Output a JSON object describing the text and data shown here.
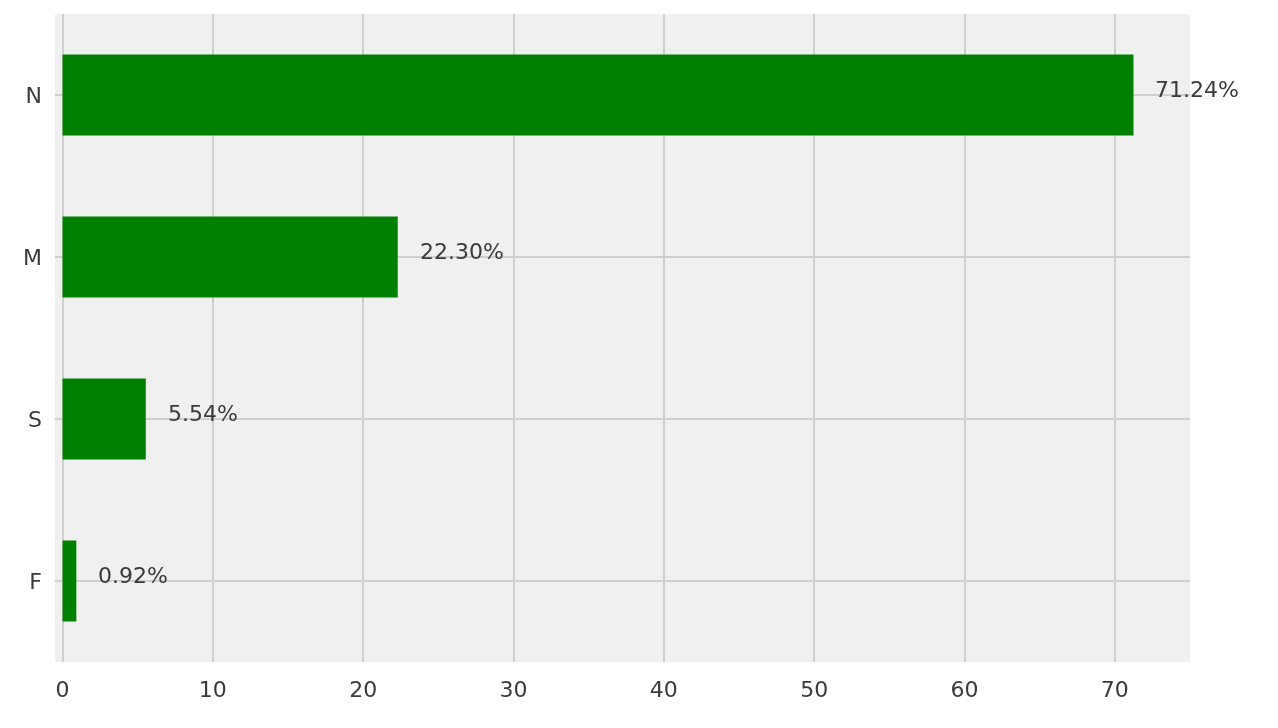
{
  "chart_data": {
    "type": "bar",
    "orientation": "horizontal",
    "categories": [
      "N",
      "M",
      "S",
      "F"
    ],
    "values": [
      71.24,
      22.3,
      5.54,
      0.92
    ],
    "value_labels": [
      "71.24%",
      "22.30%",
      "5.54%",
      "0.92%"
    ],
    "color": "#008000",
    "xlim": [
      -0.5,
      75
    ],
    "xticks": [
      0,
      10,
      20,
      30,
      40,
      50,
      60,
      70
    ],
    "grid": true
  }
}
